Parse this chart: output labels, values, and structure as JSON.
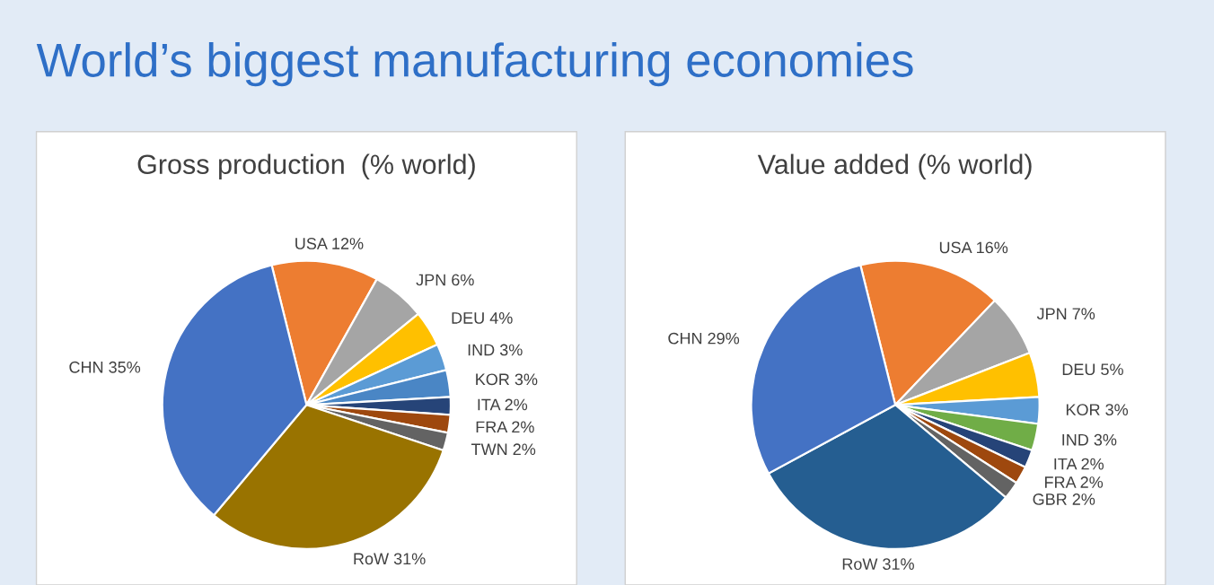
{
  "chart_data": [
    {
      "type": "pie",
      "title": "Gross production  (% world)",
      "annotations": [
        "World’s biggest manufacturing economies"
      ],
      "categories": [
        "USA",
        "JPN",
        "DEU",
        "IND",
        "KOR",
        "ITA",
        "FRA",
        "TWN",
        "RoW",
        "CHN"
      ],
      "values": [
        12,
        6,
        4,
        3,
        3,
        2,
        2,
        2,
        31,
        35
      ],
      "value_labels": [
        "12%",
        "6%",
        "4%",
        "3%",
        "3%",
        "2%",
        "2%",
        "2%",
        "31%",
        "35%"
      ],
      "colors": [
        "#ed7d31",
        "#a5a5a5",
        "#ffc000",
        "#5b9bd5",
        "#4a86c5",
        "#264478",
        "#9e480e",
        "#636363",
        "#997300",
        "#4472c4"
      ]
    },
    {
      "type": "pie",
      "title": "Value added (% world)",
      "categories": [
        "USA",
        "JPN",
        "DEU",
        "KOR",
        "IND",
        "ITA",
        "FRA",
        "GBR",
        "RoW",
        "CHN"
      ],
      "values": [
        16,
        7,
        5,
        3,
        3,
        2,
        2,
        2,
        31,
        29
      ],
      "value_labels": [
        "16%",
        "7%",
        "5%",
        "3%",
        "3%",
        "2%",
        "2%",
        "2%",
        "31%",
        "29%"
      ],
      "colors": [
        "#ed7d31",
        "#a5a5a5",
        "#ffc000",
        "#5b9bd5",
        "#70ad47",
        "#264478",
        "#9e480e",
        "#636363",
        "#255e91",
        "#4472c4"
      ]
    }
  ]
}
